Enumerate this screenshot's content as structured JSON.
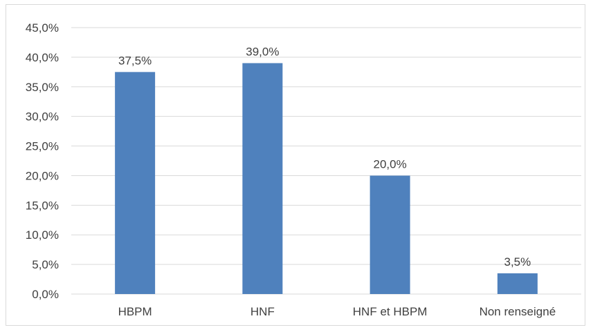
{
  "chart_data": {
    "type": "bar",
    "title": "",
    "xlabel": "",
    "ylabel": "",
    "categories": [
      "HBPM",
      "HNF",
      "HNF et HBPM",
      "Non renseigné"
    ],
    "values": [
      37.5,
      39.0,
      20.0,
      3.5
    ],
    "value_labels": [
      "37,5%",
      "39,0%",
      "20,0%",
      "3,5%"
    ],
    "ylim": [
      0,
      45
    ],
    "yticks": [
      0,
      5,
      10,
      15,
      20,
      25,
      30,
      35,
      40,
      45
    ],
    "ytick_labels": [
      "0,0%",
      "5,0%",
      "10,0%",
      "15,0%",
      "20,0%",
      "25,0%",
      "30,0%",
      "35,0%",
      "40,0%",
      "45,0%"
    ],
    "grid": true,
    "legend": "none",
    "colors": {
      "bar": "#4f81bd",
      "grid": "#d9d9d9",
      "text": "#404040"
    }
  }
}
